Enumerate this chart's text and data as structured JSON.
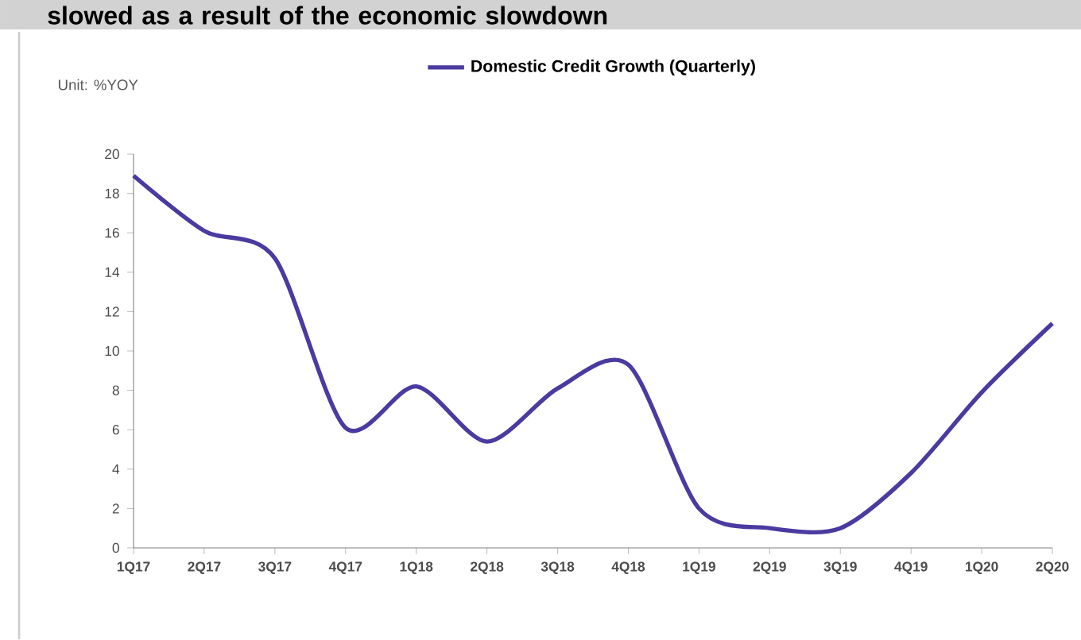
{
  "chart_data": {
    "type": "line",
    "title": "slowed as a result of the economic slowdown",
    "annotations": [
      "Unit: %YOY"
    ],
    "categories": [
      "1Q17",
      "2Q17",
      "3Q17",
      "4Q17",
      "1Q18",
      "2Q18",
      "3Q18",
      "4Q18",
      "1Q19",
      "2Q19",
      "3Q19",
      "4Q19",
      "1Q20",
      "2Q20"
    ],
    "series": [
      {
        "name": "Domestic Credit Growth (Quarterly)",
        "color": "#4b3aa0",
        "values": [
          18.9,
          16.1,
          14.7,
          6.1,
          8.2,
          5.4,
          8.1,
          9.3,
          2.0,
          1.0,
          1.0,
          3.8,
          7.9,
          11.4
        ]
      }
    ],
    "ylim": [
      0,
      20
    ],
    "yticks": [
      0,
      2,
      4,
      6,
      8,
      10,
      12,
      14,
      16,
      18,
      20
    ],
    "legend": "top",
    "grid": false,
    "marker": "none",
    "line_style": "solid"
  }
}
